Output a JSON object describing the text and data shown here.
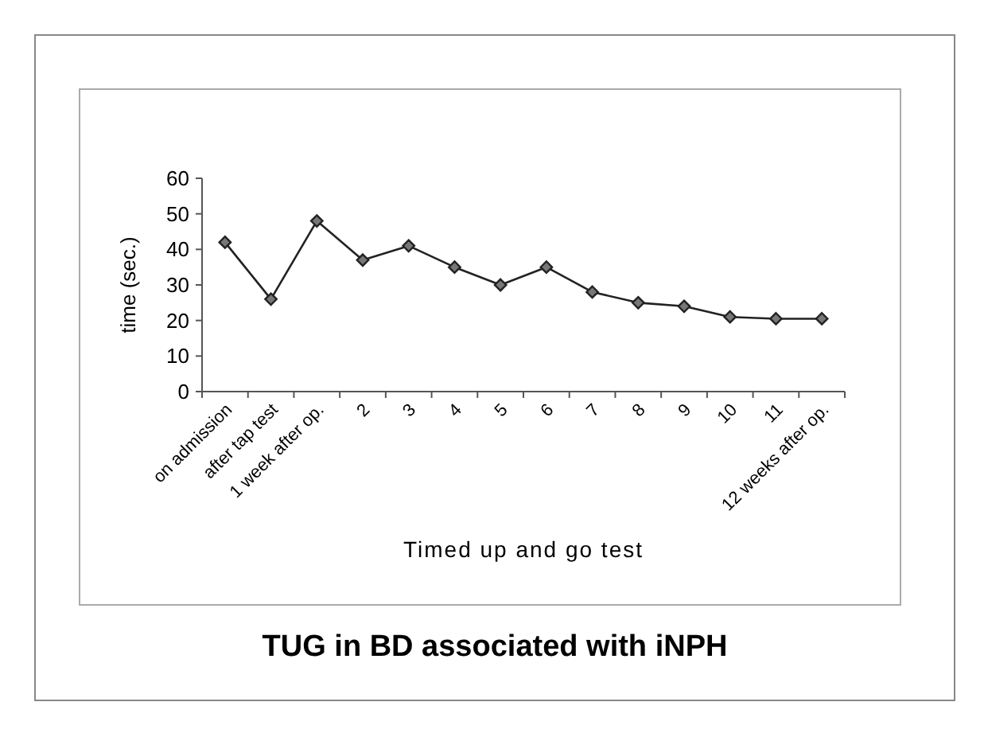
{
  "chart_data": {
    "type": "line",
    "title": "TUG in BD associated with iNPH",
    "xlabel": "Timed up and go test",
    "ylabel": "time (sec.)",
    "categories": [
      "on admission",
      "after tap test",
      "1 week after op.",
      "2",
      "3",
      "4",
      "5",
      "6",
      "7",
      "8",
      "9",
      "10",
      "11",
      "12 weeks after op."
    ],
    "series": [
      {
        "color": "#222222",
        "values": [
          42,
          26,
          48,
          37,
          41,
          35,
          30,
          35,
          28,
          25,
          24,
          21,
          20.5,
          20.5
        ]
      }
    ],
    "ylim": [
      0,
      60
    ],
    "yticks": [
      0,
      10,
      20,
      30,
      40,
      50,
      60
    ],
    "grid": false,
    "marker": "diamond",
    "line_style": "solid"
  }
}
